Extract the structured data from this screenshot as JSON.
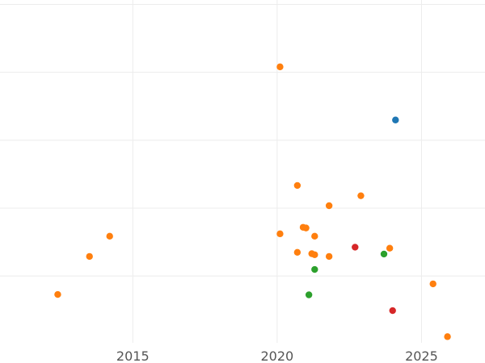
{
  "chart_data": {
    "type": "scatter",
    "title": "",
    "xlabel": "",
    "ylabel": "",
    "xlim": [
      2010.4,
      2027.2
    ],
    "ylim": [
      0,
      1
    ],
    "grid": true,
    "legend": "none",
    "x_ticks": [
      2015,
      2020,
      2025
    ],
    "x_tick_labels": [
      "2015",
      "2020",
      "2025"
    ],
    "y_gridlines": [
      0.195,
      0.393,
      0.591,
      0.789,
      0.987
    ],
    "series": [
      {
        "color": "#1f77b4",
        "points": [
          {
            "x": 2024.1,
            "y": 0.65
          }
        ]
      },
      {
        "color": "#ff7f0e",
        "points": [
          {
            "x": 2012.4,
            "y": 0.141
          },
          {
            "x": 2013.5,
            "y": 0.252
          },
          {
            "x": 2014.2,
            "y": 0.311
          },
          {
            "x": 2020.1,
            "y": 0.805
          },
          {
            "x": 2020.1,
            "y": 0.318
          },
          {
            "x": 2020.7,
            "y": 0.459
          },
          {
            "x": 2020.7,
            "y": 0.264
          },
          {
            "x": 2020.9,
            "y": 0.337
          },
          {
            "x": 2021.0,
            "y": 0.335
          },
          {
            "x": 2021.2,
            "y": 0.26
          },
          {
            "x": 2021.3,
            "y": 0.311
          },
          {
            "x": 2021.3,
            "y": 0.257
          },
          {
            "x": 2021.8,
            "y": 0.4
          },
          {
            "x": 2021.8,
            "y": 0.252
          },
          {
            "x": 2022.9,
            "y": 0.429
          },
          {
            "x": 2023.9,
            "y": 0.276
          },
          {
            "x": 2025.4,
            "y": 0.172
          },
          {
            "x": 2025.9,
            "y": 0.018
          }
        ]
      },
      {
        "color": "#2ca02c",
        "points": [
          {
            "x": 2021.3,
            "y": 0.214
          },
          {
            "x": 2021.1,
            "y": 0.14
          },
          {
            "x": 2023.7,
            "y": 0.259
          }
        ]
      },
      {
        "color": "#d62728",
        "points": [
          {
            "x": 2022.7,
            "y": 0.279
          },
          {
            "x": 2024.0,
            "y": 0.094
          }
        ]
      }
    ]
  }
}
